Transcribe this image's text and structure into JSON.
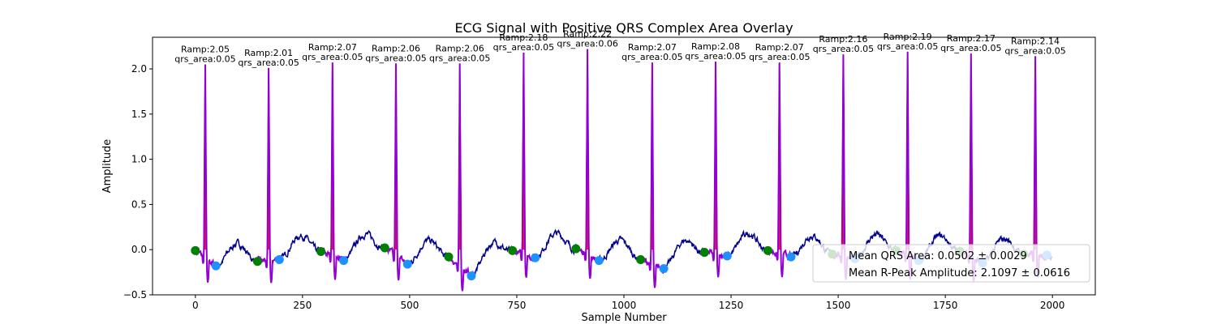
{
  "chart_data": {
    "type": "line",
    "title": "ECG Signal with Positive QRS Complex Area Overlay",
    "xlabel": "Sample Number",
    "ylabel": "Amplitude",
    "xlim": [
      -100,
      2100
    ],
    "ylim": [
      -0.5,
      2.35
    ],
    "xticks": [
      0,
      250,
      500,
      750,
      1000,
      1250,
      1500,
      1750,
      2000
    ],
    "yticks": [
      -0.5,
      0.0,
      0.5,
      1.0,
      1.5,
      2.0
    ],
    "ytick_labels": [
      "−0.5",
      "0.0",
      "0.5",
      "1.0",
      "1.5",
      "2.0"
    ],
    "grid": false,
    "legend_position": "lower-right",
    "colors": {
      "signal": "#00008b",
      "qrs_segment": "#9400d3",
      "qrs_area_fill": "#ff0000",
      "onset_marker": "#008000",
      "offset_marker": "#1e90ff"
    },
    "legend": [
      "Mean QRS Area: 0.0502 ± 0.0029",
      "Mean R-Peak Amplitude: 2.1097 ± 0.0616"
    ],
    "beats": [
      {
        "r_peak": 23,
        "r_amp": 2.05,
        "label_ramp": "Ramp:2.05",
        "label_area": "qrs_area:0.05",
        "onset": [
          0,
          -0.01
        ],
        "offset": [
          48,
          -0.18
        ]
      },
      {
        "r_peak": 171,
        "r_amp": 2.01,
        "label_ramp": "Ramp:2.01",
        "label_area": "qrs_area:0.05",
        "onset": [
          145,
          -0.13
        ],
        "offset": [
          196,
          -0.11
        ]
      },
      {
        "r_peak": 320,
        "r_amp": 2.07,
        "label_ramp": "Ramp:2.07",
        "label_area": "qrs_area:0.05",
        "onset": [
          293,
          -0.02
        ],
        "offset": [
          346,
          -0.12
        ]
      },
      {
        "r_peak": 468,
        "r_amp": 2.06,
        "label_ramp": "Ramp:2.06",
        "label_area": "qrs_area:0.05",
        "onset": [
          442,
          0.02
        ],
        "offset": [
          495,
          -0.16
        ]
      },
      {
        "r_peak": 617,
        "r_amp": 2.06,
        "label_ramp": "Ramp:2.06",
        "label_area": "qrs_area:0.05",
        "onset": [
          591,
          -0.08
        ],
        "offset": [
          644,
          -0.29
        ]
      },
      {
        "r_peak": 766,
        "r_amp": 2.18,
        "label_ramp": "Ramp:2.18",
        "label_area": "qrs_area:0.05",
        "onset": [
          740,
          -0.01
        ],
        "offset": [
          793,
          -0.09
        ]
      },
      {
        "r_peak": 915,
        "r_amp": 2.22,
        "label_ramp": "Ramp:2.22",
        "label_area": "qrs_area:0.06",
        "onset": [
          888,
          0.01
        ],
        "offset": [
          942,
          -0.12
        ]
      },
      {
        "r_peak": 1066,
        "r_amp": 2.07,
        "label_ramp": "Ramp:2.07",
        "label_area": "qrs_area:0.05",
        "onset": [
          1039,
          -0.11
        ],
        "offset": [
          1093,
          -0.21
        ]
      },
      {
        "r_peak": 1214,
        "r_amp": 2.08,
        "label_ramp": "Ramp:2.08",
        "label_area": "qrs_area:0.05",
        "onset": [
          1188,
          -0.03
        ],
        "offset": [
          1241,
          -0.07
        ]
      },
      {
        "r_peak": 1363,
        "r_amp": 2.07,
        "label_ramp": "Ramp:2.07",
        "label_area": "qrs_area:0.05",
        "onset": [
          1336,
          -0.01
        ],
        "offset": [
          1390,
          -0.08
        ]
      },
      {
        "r_peak": 1512,
        "r_amp": 2.16,
        "label_ramp": "Ramp:2.16",
        "label_area": "qrs_area:0.05",
        "onset": [
          1486,
          -0.05
        ],
        "offset": [
          1539,
          -0.1
        ]
      },
      {
        "r_peak": 1662,
        "r_amp": 2.19,
        "label_ramp": "Ramp:2.19",
        "label_area": "qrs_area:0.05",
        "onset": [
          1635,
          -0.01
        ],
        "offset": [
          1688,
          -0.12
        ]
      },
      {
        "r_peak": 1810,
        "r_amp": 2.17,
        "label_ramp": "Ramp:2.17",
        "label_area": "qrs_area:0.05",
        "onset": [
          1784,
          -0.02
        ],
        "offset": [
          1837,
          -0.15
        ]
      },
      {
        "r_peak": 1960,
        "r_amp": 2.14,
        "label_ramp": "Ramp:2.14",
        "label_area": "qrs_area:0.05",
        "onset": [
          1933,
          -0.05
        ],
        "offset": [
          1987,
          -0.06
        ]
      }
    ]
  }
}
